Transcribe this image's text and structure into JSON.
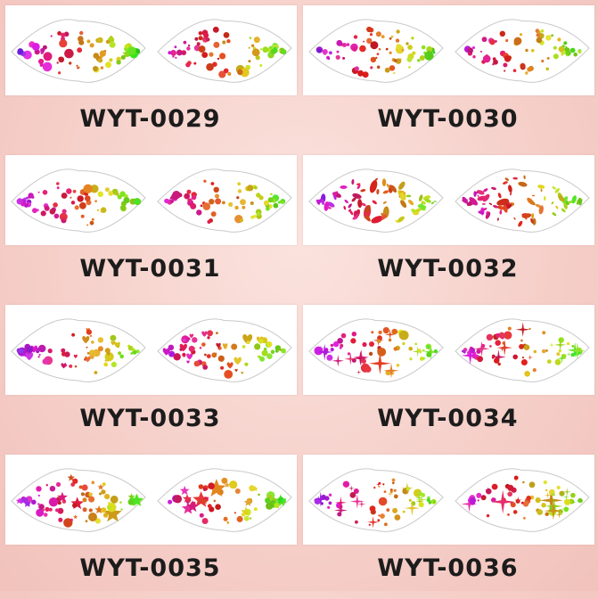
{
  "products": [
    {
      "code": "WYT-0029",
      "pattern": "dots"
    },
    {
      "code": "WYT-0030",
      "pattern": "dots"
    },
    {
      "code": "WYT-0031",
      "pattern": "dots"
    },
    {
      "code": "WYT-0032",
      "pattern": "teardrops"
    },
    {
      "code": "WYT-0033",
      "pattern": "hearts"
    },
    {
      "code": "WYT-0034",
      "pattern": "sparkles"
    },
    {
      "code": "WYT-0035",
      "pattern": "stars"
    },
    {
      "code": "WYT-0036",
      "pattern": "sparkles"
    }
  ]
}
